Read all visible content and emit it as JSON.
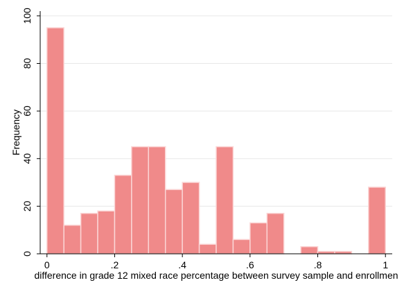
{
  "chart_data": {
    "type": "bar",
    "subtype": "histogram",
    "xlabel": "difference in grade 12 mixed race percentage between survey sample and enrollmen",
    "ylabel": "Frequency",
    "xlim": [
      -0.02,
      1.02
    ],
    "ylim": [
      0,
      102
    ],
    "bin_width": 0.05,
    "bins": [
      {
        "start": 0.0,
        "value": 95
      },
      {
        "start": 0.05,
        "value": 12
      },
      {
        "start": 0.1,
        "value": 17
      },
      {
        "start": 0.15,
        "value": 18
      },
      {
        "start": 0.2,
        "value": 33
      },
      {
        "start": 0.25,
        "value": 45
      },
      {
        "start": 0.3,
        "value": 45
      },
      {
        "start": 0.35,
        "value": 27
      },
      {
        "start": 0.4,
        "value": 30
      },
      {
        "start": 0.45,
        "value": 4
      },
      {
        "start": 0.5,
        "value": 45
      },
      {
        "start": 0.55,
        "value": 6
      },
      {
        "start": 0.6,
        "value": 13
      },
      {
        "start": 0.65,
        "value": 17
      },
      {
        "start": 0.75,
        "value": 3
      },
      {
        "start": 0.8,
        "value": 1
      },
      {
        "start": 0.85,
        "value": 1
      },
      {
        "start": 0.95,
        "value": 28
      }
    ],
    "x_ticks": [
      {
        "value": 0,
        "label": "0"
      },
      {
        "value": 0.2,
        "label": ".2"
      },
      {
        "value": 0.4,
        "label": ".4"
      },
      {
        "value": 0.6,
        "label": ".6"
      },
      {
        "value": 0.8,
        "label": ".8"
      },
      {
        "value": 1,
        "label": "1"
      }
    ],
    "y_ticks": [
      {
        "value": 0,
        "label": "0"
      },
      {
        "value": 20,
        "label": "20"
      },
      {
        "value": 40,
        "label": "40"
      },
      {
        "value": 60,
        "label": "60"
      },
      {
        "value": 80,
        "label": "80"
      },
      {
        "value": 100,
        "label": "100"
      }
    ],
    "grid": true,
    "legend": "none",
    "colors": {
      "bar_fill": "#f08a8a",
      "bar_stroke": "#fbd6d6",
      "grid": "#e8e8e8",
      "axis": "#000000"
    }
  }
}
